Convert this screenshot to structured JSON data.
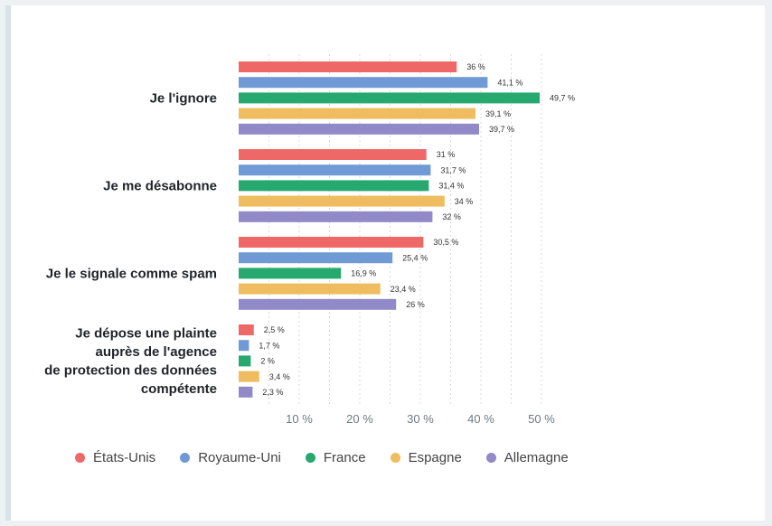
{
  "chart_data": {
    "type": "bar",
    "orientation": "horizontal",
    "title": "",
    "xlabel": "",
    "ylabel": "",
    "xlim": [
      0,
      50
    ],
    "grid": true,
    "legend_position": "bottom",
    "x_ticks": [
      "10 %",
      "20 %",
      "30 %",
      "40 %",
      "50 %"
    ],
    "categories": [
      [
        "Je l'ignore"
      ],
      [
        "Je me désabonne"
      ],
      [
        "Je le signale comme spam"
      ],
      [
        "Je dépose une plainte",
        "auprès de l'agence",
        "de protection des données",
        "compétente"
      ]
    ],
    "series": [
      {
        "name": "États-Unis",
        "color": "#ef6868",
        "values": [
          36,
          31,
          30.5,
          2.5
        ],
        "labels": [
          "36 %",
          "31 %",
          "30,5 %",
          "2,5 %"
        ]
      },
      {
        "name": "Royaume-Uni",
        "color": "#6f9ad6",
        "values": [
          41.1,
          31.7,
          25.4,
          1.7
        ],
        "labels": [
          "41,1 %",
          "31,7 %",
          "25,4 %",
          "1,7 %"
        ]
      },
      {
        "name": "France",
        "color": "#26a86f",
        "values": [
          49.7,
          31.4,
          16.9,
          2
        ],
        "labels": [
          "49,7 %",
          "31,4 %",
          "16,9 %",
          "2 %"
        ]
      },
      {
        "name": "Espagne",
        "color": "#efbd60",
        "values": [
          39.1,
          34,
          23.4,
          3.4
        ],
        "labels": [
          "39,1 %",
          "34 %",
          "23,4 %",
          "3,4 %"
        ]
      },
      {
        "name": "Allemagne",
        "color": "#9189c8",
        "values": [
          39.7,
          32,
          26,
          2.3
        ],
        "labels": [
          "39,7 %",
          "32 %",
          "26 %",
          "2,3 %"
        ]
      }
    ]
  }
}
